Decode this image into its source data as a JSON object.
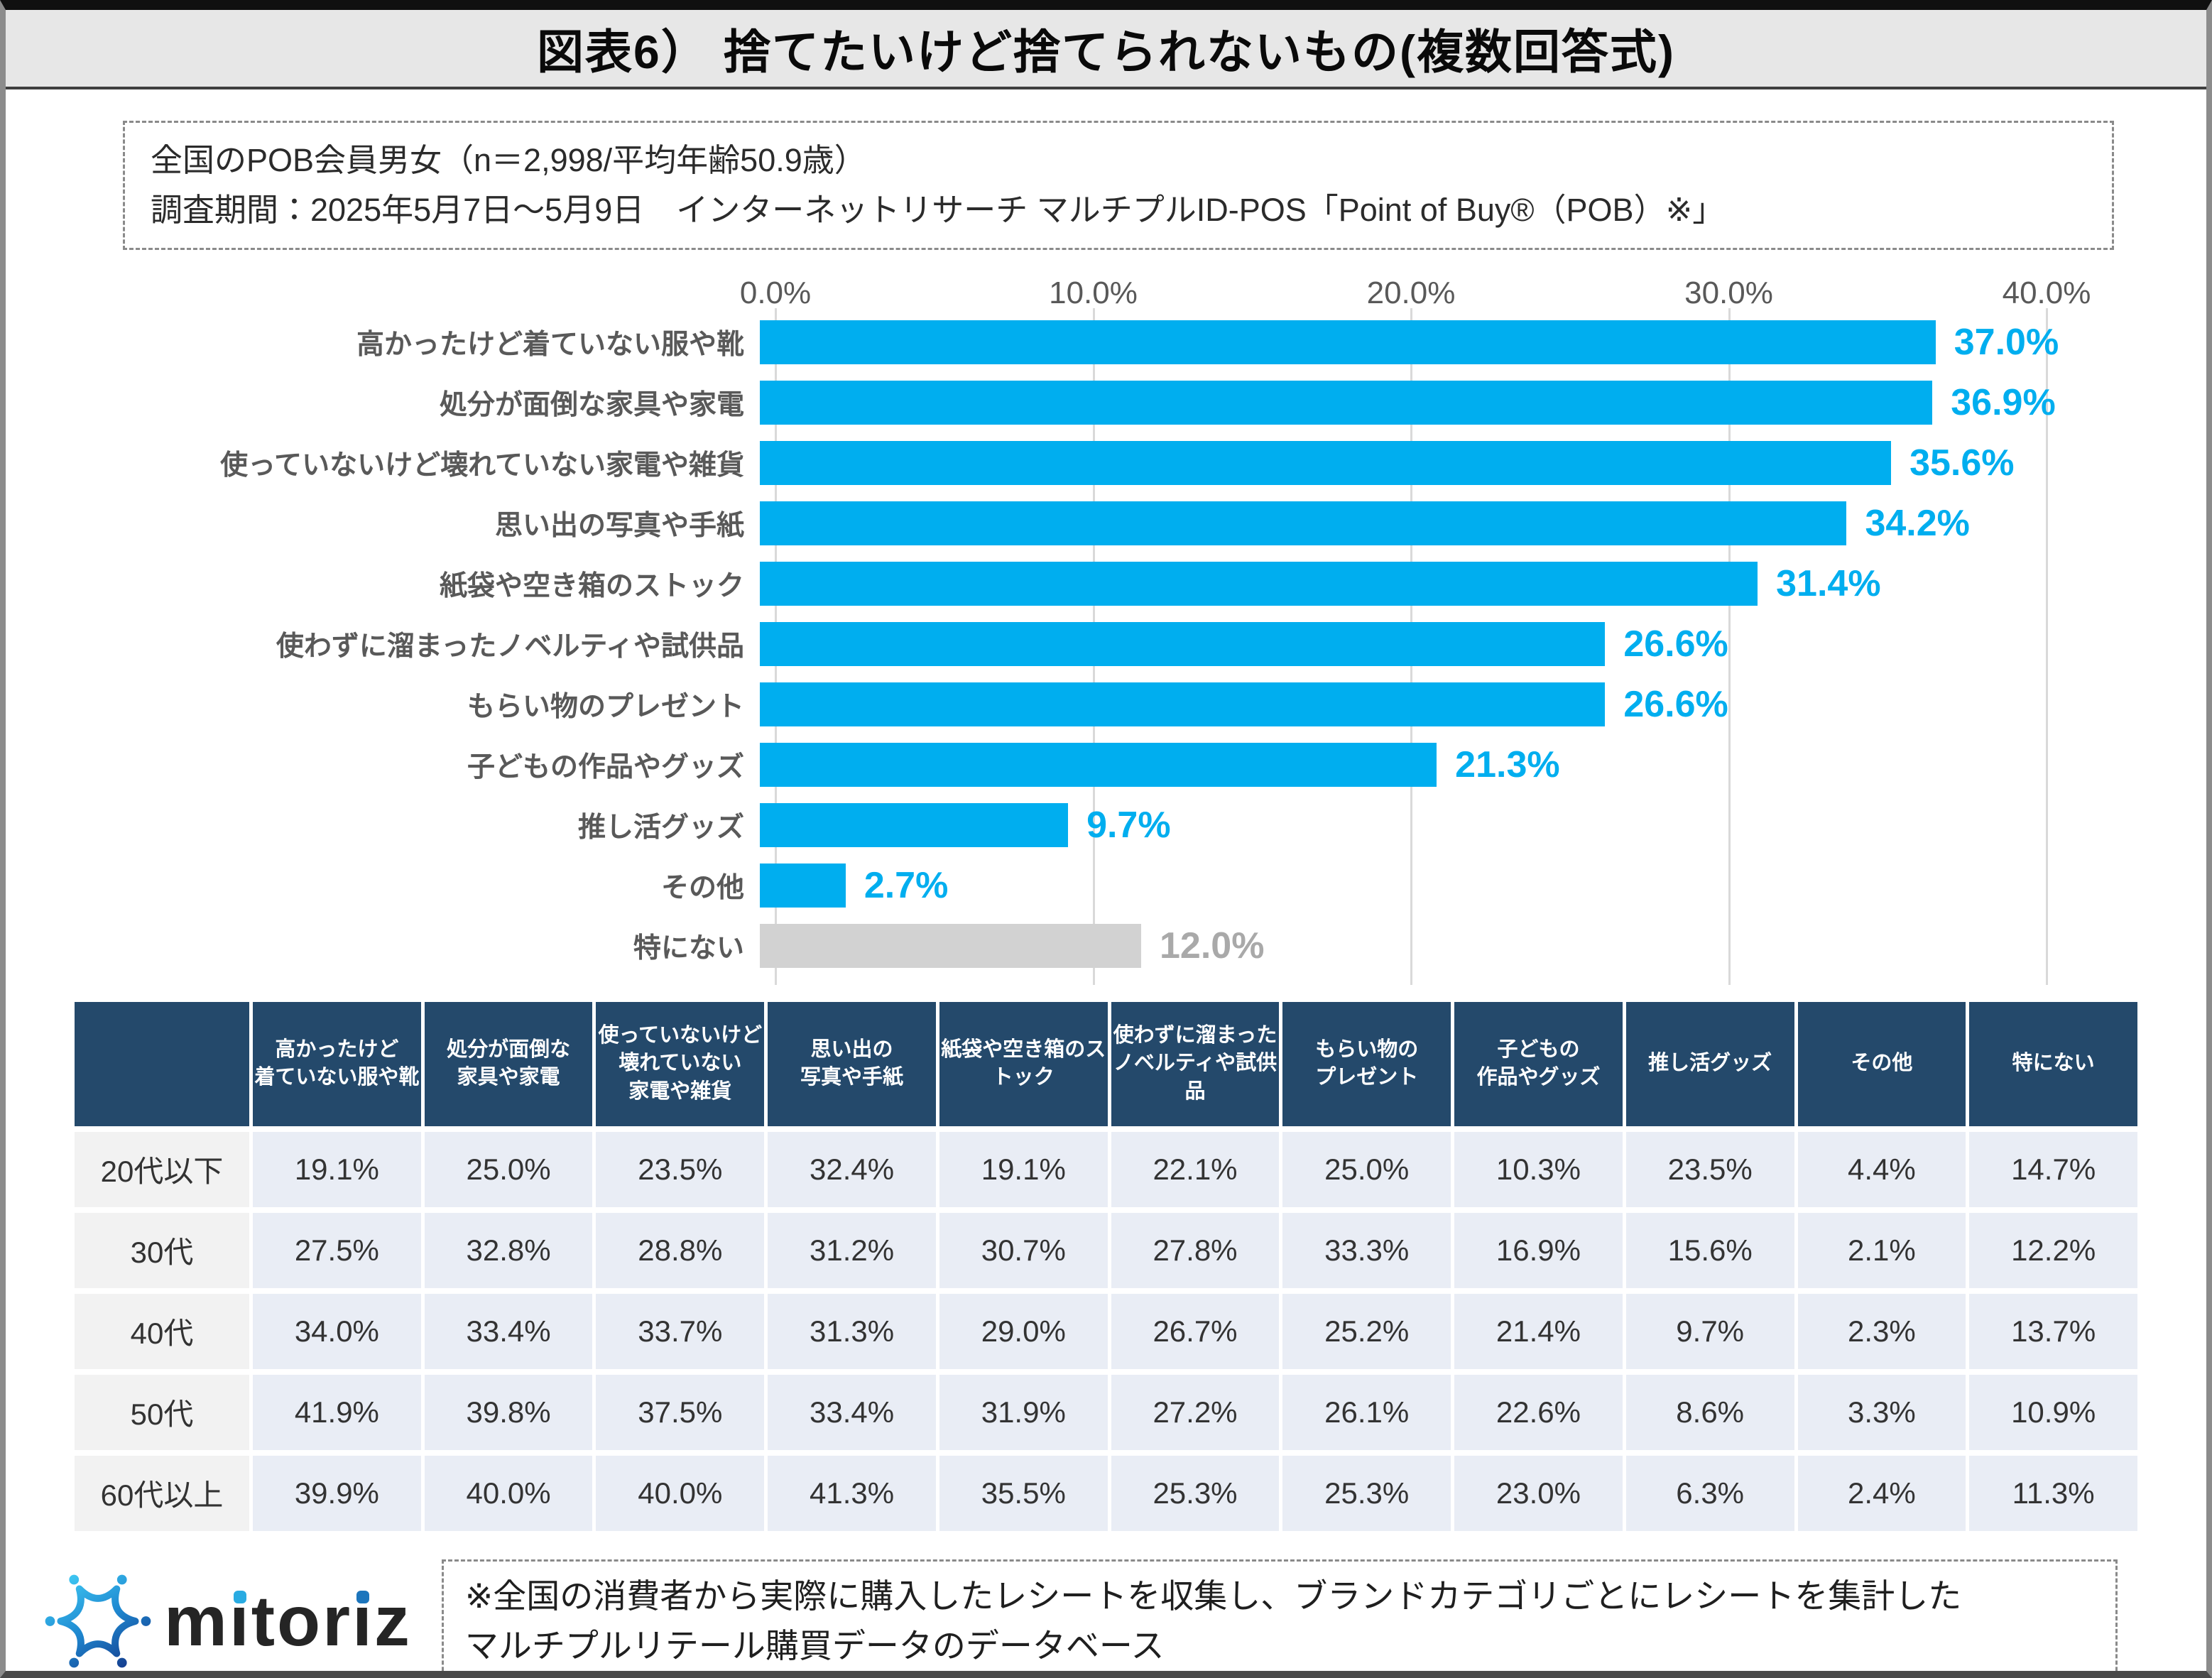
{
  "page": {
    "title": "図表6） 捨てたいけど捨てられないもの(複数回答式)",
    "survey_info_line1": "全国のPOB会員男女（n＝2,998/平均年齢50.9歳）",
    "survey_info_line2": "調査期間：2025年5月7日～5月9日　インターネットリサーチ マルチプルID-POS「Point of Buy®（POB）※」",
    "logo_text": "mitoriz",
    "footnote_line1": "※全国の消費者から実際に購入したレシートを収集し、ブランドカテゴリごとにレシートを集計した",
    "footnote_line2": "マルチプルリテール購買データのデータベース"
  },
  "colors": {
    "bar_blue": "#00aeef",
    "bar_gray": "#d2d2d2",
    "value_blue": "#00aeef",
    "value_gray": "#a9a9a9",
    "table_header_bg": "#24496b",
    "table_label_bg": "#f2f2f2",
    "table_cell_bg": "#e9edf5"
  },
  "chart_data": {
    "type": "bar",
    "orientation": "horizontal",
    "title": "捨てたいけど捨てられないもの(複数回答式)",
    "categories": [
      "高かったけど着ていない服や靴",
      "処分が面倒な家具や家電",
      "使っていないけど壊れていない家電や雑貨",
      "思い出の写真や手紙",
      "紙袋や空き箱のストック",
      "使わずに溜まったノベルティや試供品",
      "もらい物のプレゼント",
      "子どもの作品やグッズ",
      "推し活グッズ",
      "その他",
      "特にない"
    ],
    "values": [
      37.0,
      36.9,
      35.6,
      34.2,
      31.4,
      26.6,
      26.6,
      21.3,
      9.7,
      2.7,
      12.0
    ],
    "value_labels": [
      "37.0%",
      "36.9%",
      "35.6%",
      "34.2%",
      "31.4%",
      "26.6%",
      "26.6%",
      "21.3%",
      "9.7%",
      "2.7%",
      "12.0%"
    ],
    "muted_indices": [
      10
    ],
    "xlim": [
      0,
      40
    ],
    "x_ticks": [
      "0.0%",
      "10.0%",
      "20.0%",
      "30.0%",
      "40.0%"
    ],
    "axis_position": "top",
    "grid": true,
    "legend": false
  },
  "table": {
    "columns": [
      "高かったけど\n着ていない服や靴",
      "処分が面倒な\n家具や家電",
      "使っていないけど\n壊れていない\n家電や雑貨",
      "思い出の\n写真や手紙",
      "紙袋や空き箱のス\nトック",
      "使わずに溜まった\nノベルティや試供品",
      "もらい物の\nプレゼント",
      "子どもの\n作品やグッズ",
      "推し活グッズ",
      "その他",
      "特にない"
    ],
    "rows": [
      {
        "label": "20代以下",
        "values": [
          "19.1%",
          "25.0%",
          "23.5%",
          "32.4%",
          "19.1%",
          "22.1%",
          "25.0%",
          "10.3%",
          "23.5%",
          "4.4%",
          "14.7%"
        ]
      },
      {
        "label": "30代",
        "values": [
          "27.5%",
          "32.8%",
          "28.8%",
          "31.2%",
          "30.7%",
          "27.8%",
          "33.3%",
          "16.9%",
          "15.6%",
          "2.1%",
          "12.2%"
        ]
      },
      {
        "label": "40代",
        "values": [
          "34.0%",
          "33.4%",
          "33.7%",
          "31.3%",
          "29.0%",
          "26.7%",
          "25.2%",
          "21.4%",
          "9.7%",
          "2.3%",
          "13.7%"
        ]
      },
      {
        "label": "50代",
        "values": [
          "41.9%",
          "39.8%",
          "37.5%",
          "33.4%",
          "31.9%",
          "27.2%",
          "26.1%",
          "22.6%",
          "8.6%",
          "3.3%",
          "10.9%"
        ]
      },
      {
        "label": "60代以上",
        "values": [
          "39.9%",
          "40.0%",
          "40.0%",
          "41.3%",
          "35.5%",
          "25.3%",
          "25.3%",
          "23.0%",
          "6.3%",
          "2.4%",
          "11.3%"
        ]
      }
    ]
  }
}
